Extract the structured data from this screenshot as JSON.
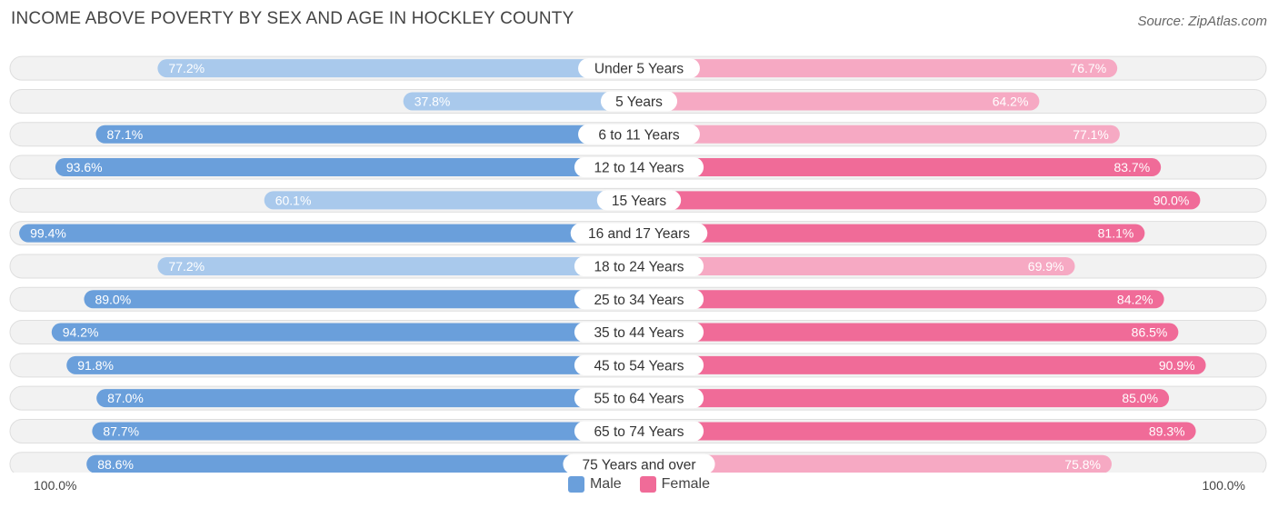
{
  "title": "INCOME ABOVE POVERTY BY SEX AND AGE IN HOCKLEY COUNTY",
  "source": "Source: ZipAtlas.com",
  "colors": {
    "male_strong": "#6a9fdb",
    "male_light": "#a9c9ec",
    "female_strong": "#f06b98",
    "female_light": "#f6a9c3",
    "row_bg": "#f2f2f2",
    "row_border": "#dedede"
  },
  "axis": {
    "left_label": "100.0%",
    "right_label": "100.0%"
  },
  "legend": {
    "male": "Male",
    "female": "Female"
  },
  "chart_data": {
    "type": "bar",
    "orientation": "horizontal-diverging",
    "title": "INCOME ABOVE POVERTY BY SEX AND AGE IN HOCKLEY COUNTY",
    "categories": [
      "Under 5 Years",
      "5 Years",
      "6 to 11 Years",
      "12 to 14 Years",
      "15 Years",
      "16 and 17 Years",
      "18 to 24 Years",
      "25 to 34 Years",
      "35 to 44 Years",
      "45 to 54 Years",
      "55 to 64 Years",
      "65 to 74 Years",
      "75 Years and over"
    ],
    "series": [
      {
        "name": "Male",
        "values": [
          77.2,
          37.8,
          87.1,
          93.6,
          60.1,
          99.4,
          77.2,
          89.0,
          94.2,
          91.8,
          87.0,
          87.7,
          88.6
        ],
        "labels": [
          "77.2%",
          "37.8%",
          "87.1%",
          "93.6%",
          "60.1%",
          "99.4%",
          "77.2%",
          "89.0%",
          "94.2%",
          "91.8%",
          "87.0%",
          "87.7%",
          "88.6%"
        ]
      },
      {
        "name": "Female",
        "values": [
          76.7,
          64.2,
          77.1,
          83.7,
          90.0,
          81.1,
          69.9,
          84.2,
          86.5,
          90.9,
          85.0,
          89.3,
          75.8
        ],
        "labels": [
          "76.7%",
          "64.2%",
          "77.1%",
          "83.7%",
          "90.0%",
          "81.1%",
          "69.9%",
          "84.2%",
          "86.5%",
          "90.9%",
          "85.0%",
          "89.3%",
          "75.8%"
        ]
      }
    ],
    "xlim": [
      0,
      100
    ],
    "xlabel": "",
    "ylabel": "",
    "legend_position": "bottom-center"
  }
}
